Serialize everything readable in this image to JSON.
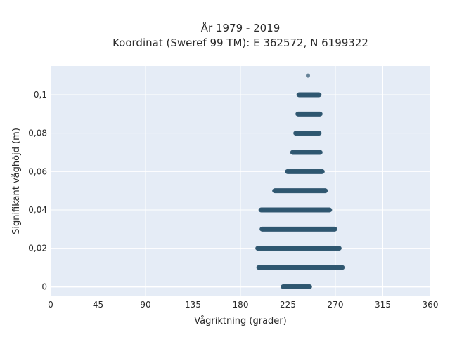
{
  "chart_data": {
    "type": "scatter",
    "title_line1": "År 1979 - 2019",
    "title_line2": "Koordinat (Sweref 99 TM): E 362572, N 6199322",
    "xlabel": "Vågriktning (grader)",
    "ylabel": "Signifikant våghöjd (m)",
    "xlim": [
      0,
      360
    ],
    "ylim": [
      -0.005,
      0.115
    ],
    "xticks": [
      0,
      45,
      90,
      135,
      180,
      225,
      270,
      315,
      360
    ],
    "yticks": [
      0,
      0.02,
      0.04,
      0.06,
      0.08,
      0.1
    ],
    "ytick_labels": [
      "0",
      "0,02",
      "0,04",
      "0,06",
      "0,08",
      "0,1"
    ],
    "grid": true,
    "colors": {
      "background": "#e5ecf6",
      "grid": "#ffffff",
      "marker": "#2f5670"
    },
    "bands": [
      {
        "y": 0.0,
        "x_min": 220,
        "x_max": 246
      },
      {
        "y": 0.01,
        "x_min": 197,
        "x_max": 277
      },
      {
        "y": 0.02,
        "x_min": 196,
        "x_max": 274
      },
      {
        "y": 0.03,
        "x_min": 200,
        "x_max": 270
      },
      {
        "y": 0.04,
        "x_min": 199,
        "x_max": 265
      },
      {
        "y": 0.05,
        "x_min": 212,
        "x_max": 261
      },
      {
        "y": 0.06,
        "x_min": 224,
        "x_max": 258
      },
      {
        "y": 0.07,
        "x_min": 229,
        "x_max": 256
      },
      {
        "y": 0.08,
        "x_min": 232,
        "x_max": 255
      },
      {
        "y": 0.09,
        "x_min": 234,
        "x_max": 256
      },
      {
        "y": 0.1,
        "x_min": 235,
        "x_max": 255
      }
    ],
    "outliers": [
      {
        "x": 244,
        "y": 0.11
      }
    ]
  }
}
